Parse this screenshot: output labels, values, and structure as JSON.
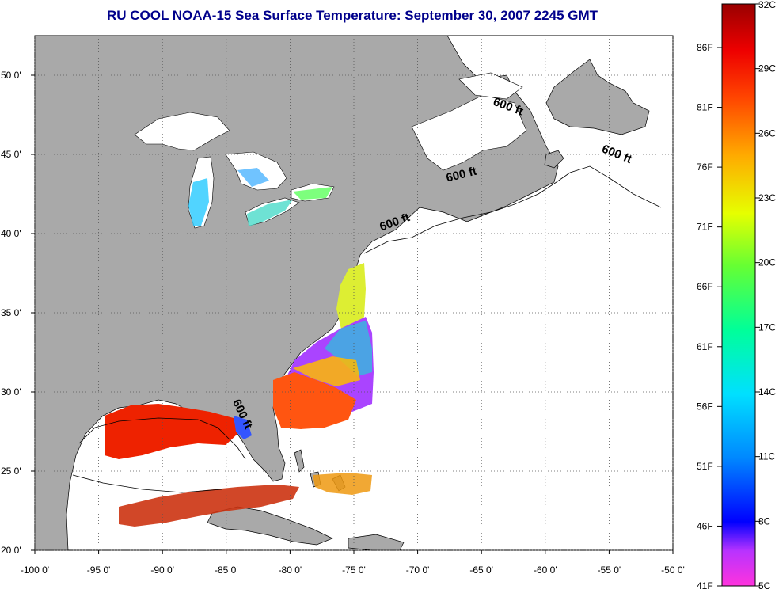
{
  "title": "RU COOL  NOAA-15  Sea Surface Temperature:  September 30, 2007 2245 GMT",
  "axes": {
    "x_range": [
      -100,
      -50
    ],
    "y_range": [
      20,
      52.5
    ],
    "x_ticks": [
      {
        "value": -100,
        "label": "-100 0'"
      },
      {
        "value": -95,
        "label": "-95 0'"
      },
      {
        "value": -90,
        "label": "-90 0'"
      },
      {
        "value": -85,
        "label": "-85 0'"
      },
      {
        "value": -80,
        "label": "-80 0'"
      },
      {
        "value": -75,
        "label": "-75 0'"
      },
      {
        "value": -70,
        "label": "-70 0'"
      },
      {
        "value": -65,
        "label": "-65 0'"
      },
      {
        "value": -60,
        "label": "-60 0'"
      },
      {
        "value": -55,
        "label": "-55 0'"
      },
      {
        "value": -50,
        "label": "-50 0'"
      }
    ],
    "y_ticks": [
      {
        "value": 20,
        "label": "20 0'"
      },
      {
        "value": 25,
        "label": "25 0'"
      },
      {
        "value": 30,
        "label": "30 0'"
      },
      {
        "value": 35,
        "label": "35 0'"
      },
      {
        "value": 40,
        "label": "40 0'"
      },
      {
        "value": 45,
        "label": "45 0'"
      },
      {
        "value": 50,
        "label": "50 0'"
      }
    ],
    "grid": "dotted"
  },
  "bathymetry_labels": [
    {
      "text": "600 ft",
      "lon": -63,
      "lat": 47.8
    },
    {
      "text": "600 ft",
      "lon": -54.5,
      "lat": 44.8
    },
    {
      "text": "600 ft",
      "lon": -66.5,
      "lat": 43.5
    },
    {
      "text": "600 ft",
      "lon": -71.7,
      "lat": 40.5
    },
    {
      "text": "600 ft",
      "lon": -84,
      "lat": 28.5
    }
  ],
  "colorbar": {
    "range_c": [
      5,
      32
    ],
    "celsius_labels": [
      "32C",
      "29C",
      "26C",
      "23C",
      "20C",
      "17C",
      "14C",
      "11C",
      "8C",
      "5C"
    ],
    "fahrenheit_labels": [
      "86F",
      "81F",
      "76F",
      "71F",
      "66F",
      "61F",
      "56F",
      "51F",
      "46F",
      "41F"
    ]
  },
  "colors": {
    "land": "#a9a9a9",
    "title": "#00008b"
  }
}
